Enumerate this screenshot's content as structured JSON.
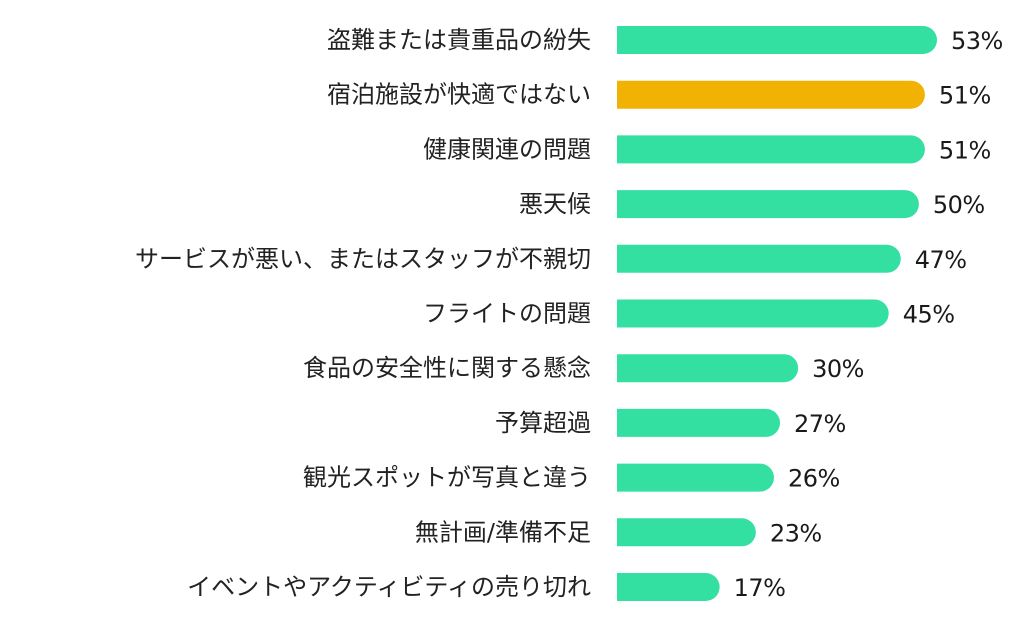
{
  "chart_data": {
    "type": "bar",
    "orientation": "horizontal",
    "title": "",
    "xlabel": "",
    "ylabel": "",
    "xlim": [
      0,
      53
    ],
    "grid": false,
    "legend": "none",
    "value_suffix": "%",
    "categories": [
      "盗難または貴重品の紛失",
      "宿泊施設が快適ではない",
      "健康関連の問題",
      "悪天候",
      "サービスが悪い、またはスタッフが不親切",
      "フライトの問題",
      "食品の安全性に関する懸念",
      "予算超過",
      "観光スポットが写真と違う",
      "無計画/準備不足",
      "イベントやアクティビティの売り切れ"
    ],
    "values": [
      53,
      51,
      51,
      50,
      47,
      45,
      30,
      27,
      26,
      23,
      17
    ],
    "value_labels": [
      "53%",
      "51%",
      "51%",
      "50%",
      "47%",
      "45%",
      "30%",
      "27%",
      "26%",
      "23%",
      "17%"
    ],
    "highlight_index": 1,
    "colors": {
      "default": "#34E0A1",
      "highlight": "#F2B203"
    }
  }
}
